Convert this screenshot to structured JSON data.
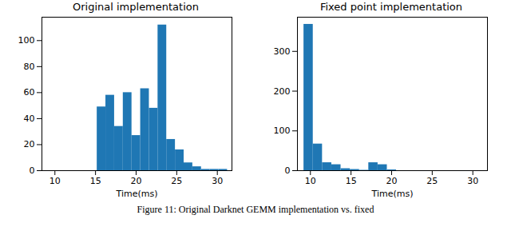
{
  "chart_data": [
    {
      "type": "histogram",
      "title": "Original implementation",
      "x_label": "Time(ms)",
      "bins": [
        15.2,
        16.27,
        17.34,
        18.41,
        19.48,
        20.55,
        21.62,
        22.69,
        23.76,
        24.83,
        25.9,
        26.97,
        28.04,
        29.11,
        30.18,
        31.25
      ],
      "values": [
        49,
        58,
        34,
        60,
        27,
        63,
        48,
        112,
        24,
        16,
        6,
        3,
        1,
        1,
        1
      ],
      "color": "#1f77b4",
      "xlim": [
        8.4,
        31.8
      ],
      "xticks": [
        10,
        15,
        20,
        25,
        30
      ],
      "ylim": [
        0,
        118
      ],
      "yticks": [
        0,
        20,
        40,
        60,
        80,
        100
      ],
      "grid": false
    },
    {
      "type": "histogram",
      "title": "Fixed point implementation",
      "x_label": "Time(ms)",
      "bins": [
        9.2,
        10.34,
        11.48,
        12.62,
        13.76,
        14.9,
        16.04,
        17.18,
        18.32,
        19.46,
        20.6
      ],
      "values": [
        368,
        67,
        20,
        15,
        5,
        3,
        1,
        20,
        15,
        2
      ],
      "color": "#1f77b4",
      "xlim": [
        8.4,
        31.8
      ],
      "xticks": [
        10,
        15,
        20,
        25,
        30
      ],
      "ylim": [
        0,
        386
      ],
      "yticks": [
        0,
        100,
        200,
        300
      ],
      "grid": false
    }
  ],
  "caption": "Figure 11: Original Darknet GEMM implementation vs. fixed"
}
